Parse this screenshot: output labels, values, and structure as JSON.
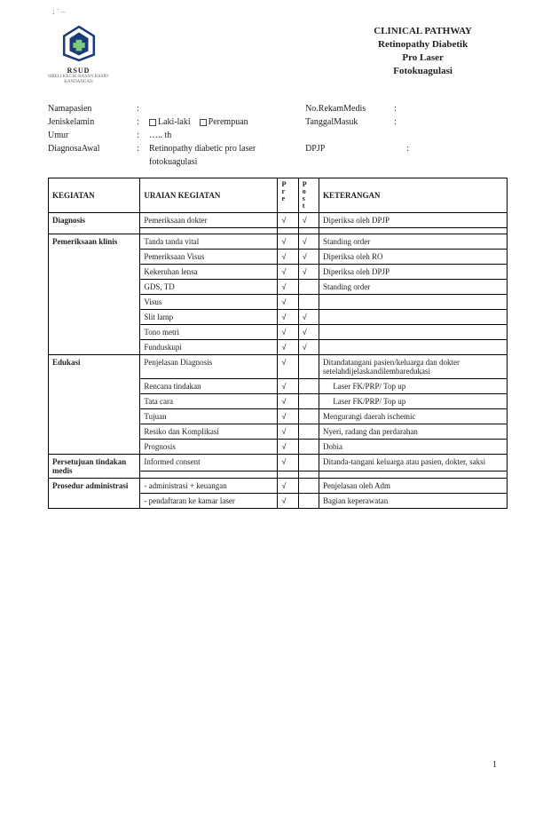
{
  "topmark": "↓    ′ –",
  "logo": {
    "caption1": "RSUD",
    "caption2": "SIBELI KEC.H. HASAN BASRY\nKANDANGAN"
  },
  "title": [
    "CLINICAL PATHWAY",
    "Retinopathy Diabetik",
    "Pro Laser",
    "Fotokuagulasi"
  ],
  "meta_left": {
    "nama": {
      "label": "Namapasien",
      "value": ""
    },
    "jk": {
      "label": "Jeniskelamin",
      "opt1": "Laki-laki",
      "opt2": "Perempuan"
    },
    "umur": {
      "label": "Umur",
      "value": "….. th"
    },
    "diag": {
      "label": "DiagnosaAwal",
      "value": "Retinopathy diabetic pro laser fotokuagulasi"
    }
  },
  "meta_right": {
    "rm": {
      "label": "No.RekamMedis",
      "value": ""
    },
    "tgl": {
      "label": "TanggalMasuk",
      "value": ""
    },
    "dpjp": {
      "label": "DPJP",
      "value": ""
    }
  },
  "headers": {
    "kegiatan": "KEGIATAN",
    "uraian": "URAIAN KEGIATAN",
    "ket": "KETERANGAN",
    "pre": "Pre",
    "post": "Post"
  },
  "sections": {
    "diagnosis": {
      "title": "Diagnosis",
      "rows": [
        {
          "u": "Pemeriksaan dokter",
          "pre": "√",
          "post": "√",
          "ket": "Diperiksa oleh DPJP"
        },
        {
          "u": "",
          "pre": "",
          "post": "",
          "ket": ""
        }
      ]
    },
    "klinis": {
      "title": "Pemeriksaan klinis",
      "rows": [
        {
          "u": "Tanda tanda vital",
          "pre": "√",
          "post": "√",
          "ket": "Standing order"
        },
        {
          "u": "Pemeriksaan Visus",
          "pre": "√",
          "post": "√",
          "ket": "Diperiksa oleh RO"
        },
        {
          "u": "Kekeruhan lensa",
          "pre": "√",
          "post": "√",
          "ket": "Diperiksa oleh DPJP"
        },
        {
          "u": "GDS, TD",
          "pre": "√",
          "post": "",
          "ket": "Standing order"
        },
        {
          "u": "Visus",
          "pre": "√",
          "post": "",
          "ket": ""
        },
        {
          "u": "Slit lamp",
          "pre": "√",
          "post": "√",
          "ket": ""
        },
        {
          "u": "Tono metri",
          "pre": "√",
          "post": "√",
          "ket": ""
        },
        {
          "u": "Funduskupi",
          "pre": "√",
          "post": "√",
          "ket": ""
        }
      ]
    },
    "edukasi": {
      "title": "Edukasi",
      "rows": [
        {
          "u": "Penjelasan Diagnosis",
          "pre": "√",
          "post": "",
          "ket": "Ditandatangani pasien/keluarga dan dokter setelahdijelaskandilembaredukasi"
        },
        {
          "u": "Rencana tindakan",
          "pre": "√",
          "post": "",
          "ket": "     Laser FK/PRP/ Top up"
        },
        {
          "u": "Tata cara",
          "pre": "√",
          "post": "",
          "ket": "     Laser FK/PRP/ Top up"
        },
        {
          "u": "Tujuan",
          "pre": "√",
          "post": "",
          "ket": "Mengurangi daerah ischemic"
        },
        {
          "u": "Resiko dan Komplikasi",
          "pre": "√",
          "post": "",
          "ket": "Nyeri, radang dan perdarahan"
        },
        {
          "u": "Prognosis",
          "pre": "√",
          "post": "",
          "ket": "Dobia"
        }
      ]
    },
    "persetujuan": {
      "title": "Persetujuan tindakan medis",
      "rows": [
        {
          "u": "Informed consent",
          "pre": "√",
          "post": "",
          "ket": "Ditanda-tangani keluarga atau pasien, dokter, saksi"
        },
        {
          "u": "",
          "pre": "",
          "post": "",
          "ket": ""
        }
      ]
    },
    "adm": {
      "title": "Prosedur administrasi",
      "rows": [
        {
          "u": "- administrasi + keuangan",
          "pre": "√",
          "post": "",
          "ket": "Penjelasan oleh Adm"
        },
        {
          "u": "- pendaftaran ke kamar laser",
          "pre": "√",
          "post": "",
          "ket": "Bagian keperawatan"
        }
      ]
    }
  },
  "page_number": "1"
}
